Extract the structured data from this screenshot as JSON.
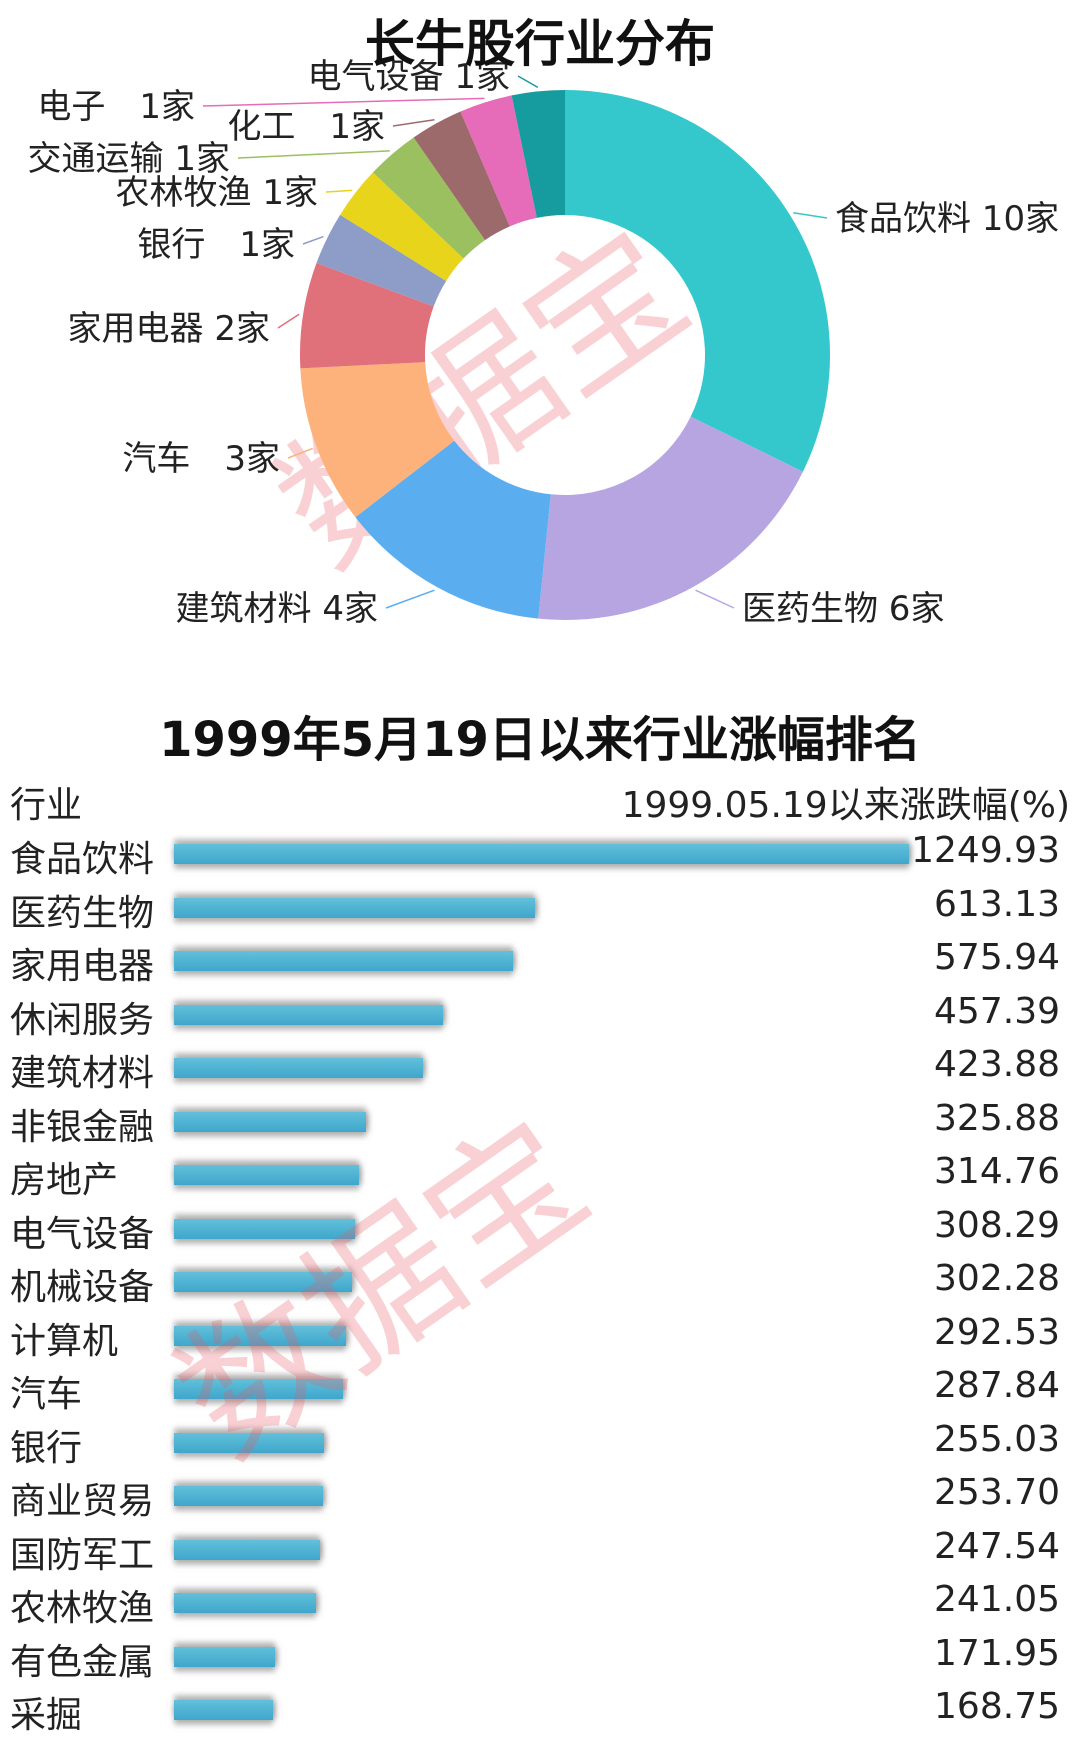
{
  "pie_title": "长牛股行业分布",
  "bar_title": "1999年5月19日以来行业涨幅排名",
  "watermark": "数据宝",
  "chart_data": [
    {
      "type": "pie",
      "title": "长牛股行业分布",
      "slices": [
        {
          "label": "食品饮料 10家",
          "value": 10,
          "color": "#34c8cc"
        },
        {
          "label": "医药生物 6家",
          "value": 6,
          "color": "#b7a5e2"
        },
        {
          "label": "建筑材料 4家",
          "value": 4,
          "color": "#5aaef0"
        },
        {
          "label": "汽车　3家",
          "value": 3,
          "color": "#fdb27c"
        },
        {
          "label": "家用电器 2家",
          "value": 2,
          "color": "#e0707a"
        },
        {
          "label": "银行　1家",
          "value": 1,
          "color": "#8e9dc8"
        },
        {
          "label": "农林牧渔 1家",
          "value": 1,
          "color": "#e8d41a"
        },
        {
          "label": "交通运输 1家",
          "value": 1,
          "color": "#9ac060"
        },
        {
          "label": "化工　1家",
          "value": 1,
          "color": "#9c6a6a"
        },
        {
          "label": "电子　1家",
          "value": 1,
          "color": "#e66bb8"
        },
        {
          "label": "电气设备 1家",
          "value": 1,
          "color": "#169b9e"
        }
      ]
    },
    {
      "type": "bar",
      "title": "1999年5月19日以来行业涨幅排名",
      "col_header_label": "行业",
      "col_header_value": "1999.05.19以来涨跌幅(%)",
      "categories": [
        "食品饮料",
        "医药生物",
        "家用电器",
        "休闲服务",
        "建筑材料",
        "非银金融",
        "房地产",
        "电气设备",
        "机械设备",
        "计算机",
        "汽车",
        "银行",
        "商业贸易",
        "国防军工",
        "农林牧渔",
        "有色金属",
        "采掘"
      ],
      "values": [
        1249.93,
        613.13,
        575.94,
        457.39,
        423.88,
        325.88,
        314.76,
        308.29,
        302.28,
        292.53,
        287.84,
        255.03,
        253.7,
        247.54,
        241.05,
        171.95,
        168.75
      ],
      "value_labels": [
        "1249.93",
        "613.13",
        "575.94",
        "457.39",
        "423.88",
        "325.88",
        "314.76",
        "308.29",
        "302.28",
        "292.53",
        "287.84",
        "255.03",
        "253.70",
        "247.54",
        "241.05",
        "171.95",
        "168.75"
      ],
      "bar_color": "#3fa6cb"
    }
  ]
}
